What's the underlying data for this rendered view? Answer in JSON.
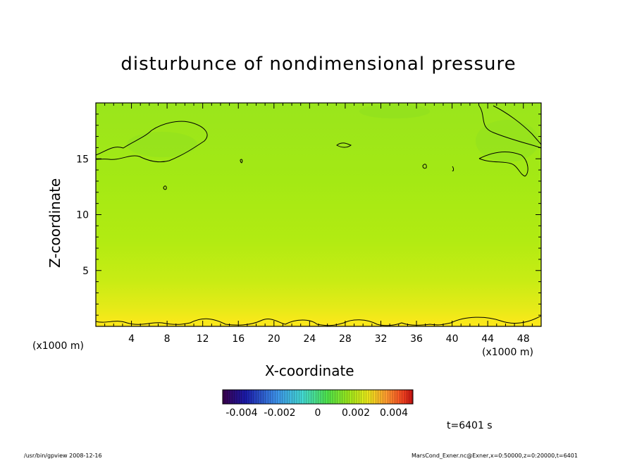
{
  "chart_data": {
    "type": "heatmap",
    "title": "disturbunce of nondimensional pressure",
    "xlabel": "X-coordinate",
    "ylabel": "Z-coordinate",
    "x_unit": "(x1000 m)",
    "x_unit_right": "(x1000 m)",
    "xlim": [
      0,
      50
    ],
    "ylim": [
      0,
      20
    ],
    "x_ticks": [
      4,
      8,
      12,
      16,
      20,
      24,
      28,
      32,
      36,
      40,
      44,
      48
    ],
    "y_ticks": [
      5,
      10,
      15
    ],
    "colorbar": {
      "range": [
        -0.005,
        0.005
      ],
      "tick_labels": [
        "-0.004",
        "-0.002",
        "0",
        "0.002",
        "0.004"
      ],
      "tick_values": [
        -0.004,
        -0.002,
        0,
        0.002,
        0.004
      ]
    },
    "field_description_value_range": [
      0.0015,
      0.0045
    ],
    "time_label": "t=6401 s"
  },
  "footer": {
    "left": "/usr/bin/gpview   2008-12-16",
    "right": "MarsCond_Exner.nc@Exner,x=0:50000,z=0:20000,t=6401"
  },
  "colors": {
    "field_top": "#99e61a",
    "field_mid": "#a6ea14",
    "field_bottom": "#ffe61a"
  }
}
